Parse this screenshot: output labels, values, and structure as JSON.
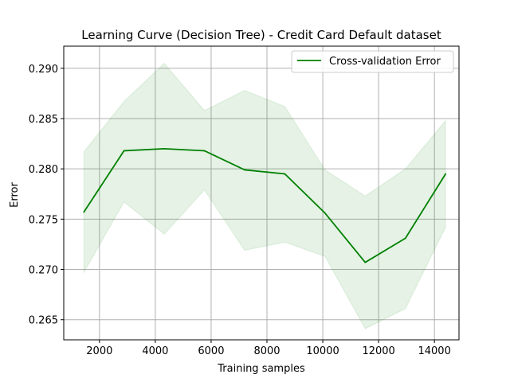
{
  "chart_data": {
    "type": "line",
    "title": "Learning Curve (Decision Tree) - Credit Card Default dataset",
    "xlabel": "Training samples",
    "ylabel": "Error",
    "xlim": [
      720,
      14880
    ],
    "ylim": [
      0.263,
      0.2922
    ],
    "xticks": [
      2000,
      4000,
      6000,
      8000,
      10000,
      12000,
      14000
    ],
    "yticks": [
      0.265,
      0.27,
      0.275,
      0.28,
      0.285,
      0.29
    ],
    "xtick_labels": [
      "2000",
      "4000",
      "6000",
      "8000",
      "10000",
      "12000",
      "14000"
    ],
    "ytick_labels": [
      "0.265",
      "0.270",
      "0.275",
      "0.280",
      "0.285",
      "0.290"
    ],
    "grid": true,
    "legend_position": "top-right",
    "x": [
      1440,
      2880,
      4320,
      5760,
      7200,
      8640,
      10080,
      11520,
      12960,
      14400
    ],
    "series": [
      {
        "name": "Cross-validation Error",
        "color": "#008000",
        "values": [
          0.2757,
          0.2818,
          0.282,
          0.2818,
          0.2799,
          0.2795,
          0.2756,
          0.2707,
          0.2731,
          0.2795
        ],
        "band_upper": [
          0.2817,
          0.2867,
          0.2905,
          0.2858,
          0.2878,
          0.2862,
          0.2799,
          0.2773,
          0.28,
          0.2848
        ],
        "band_lower": [
          0.2697,
          0.2767,
          0.2735,
          0.2779,
          0.2719,
          0.2727,
          0.2713,
          0.2641,
          0.2661,
          0.2742
        ],
        "band_color": "#008000"
      }
    ]
  }
}
